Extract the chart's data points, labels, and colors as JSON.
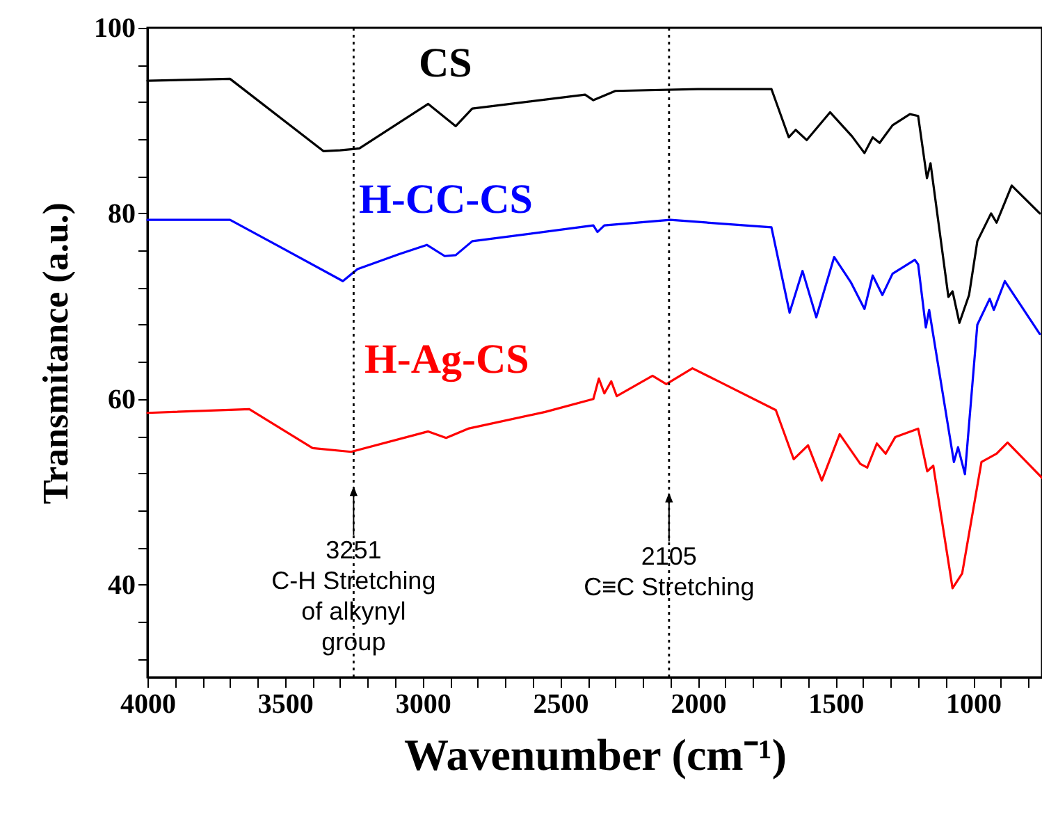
{
  "chart_data": {
    "type": "line",
    "xlabel": "Wavenumber (cm⁻¹)",
    "ylabel": "Transmitance (a.u.)",
    "xlim": [
      4000,
      750
    ],
    "ylim": [
      30,
      100
    ],
    "xticks": [
      4000,
      {
        "value": 3900,
        "label": null
      },
      {
        "value": 3800,
        "label": null
      },
      {
        "value": 3700,
        "label": null
      },
      {
        "value": 3600,
        "label": null
      },
      3500,
      {
        "value": 3400,
        "label": null
      },
      {
        "value": 3300,
        "label": null
      },
      {
        "value": 3200,
        "label": null
      },
      {
        "value": 3100,
        "label": null
      },
      3000,
      {
        "value": 2900,
        "label": null
      },
      {
        "value": 2800,
        "label": null
      },
      {
        "value": 2700,
        "label": null
      },
      {
        "value": 2600,
        "label": null
      },
      2500,
      {
        "value": 2400,
        "label": null
      },
      {
        "value": 2300,
        "label": null
      },
      {
        "value": 2200,
        "label": null
      },
      {
        "value": 2100,
        "label": null
      },
      2000,
      {
        "value": 1900,
        "label": null
      },
      {
        "value": 1800,
        "label": null
      },
      {
        "value": 1700,
        "label": null
      },
      {
        "value": 1600,
        "label": null
      },
      1500,
      {
        "value": 1400,
        "label": null
      },
      {
        "value": 1300,
        "label": null
      },
      {
        "value": 1200,
        "label": null
      },
      {
        "value": 1100,
        "label": null
      },
      1000,
      {
        "value": 900,
        "label": null
      },
      {
        "value": 800,
        "label": null
      }
    ],
    "yticks": [
      {
        "value": 32,
        "label": null
      },
      {
        "value": 36,
        "label": null
      },
      40,
      {
        "value": 44,
        "label": null
      },
      {
        "value": 48,
        "label": null
      },
      {
        "value": 52,
        "label": null
      },
      {
        "value": 56,
        "label": null
      },
      60,
      {
        "value": 64,
        "label": null
      },
      {
        "value": 68,
        "label": null
      },
      {
        "value": 72,
        "label": null
      },
      {
        "value": 76,
        "label": null
      },
      80,
      {
        "value": 84,
        "label": null
      },
      {
        "value": 88,
        "label": null
      },
      {
        "value": 92,
        "label": null
      },
      {
        "value": 96,
        "label": null
      },
      100
    ],
    "grid": false,
    "marker": "none",
    "line_style": "solid",
    "series": [
      {
        "name": "CS",
        "color": "#000000",
        "x": [
          4000,
          3700,
          3360,
          3300,
          3230,
          2980,
          2880,
          2820,
          2410,
          2380,
          2300,
          2000,
          1733,
          1670,
          1645,
          1605,
          1520,
          1440,
          1395,
          1365,
          1340,
          1293,
          1230,
          1200,
          1168,
          1155,
          1090,
          1075,
          1050,
          1015,
          985,
          935,
          915,
          860,
          758
        ],
        "values": [
          94.3,
          94.5,
          86.7,
          86.8,
          87,
          91.8,
          89.4,
          91.3,
          92.8,
          92.2,
          93.2,
          93.4,
          93.4,
          88.2,
          89,
          87.9,
          90.9,
          88.3,
          86.5,
          88.2,
          87.6,
          89.5,
          90.7,
          90.5,
          83.8,
          85.4,
          71,
          71.6,
          68.2,
          71.2,
          77,
          80,
          79,
          83,
          80
        ]
      },
      {
        "name": "H-CC-CS",
        "color": "#0000ff",
        "x": [
          4000,
          3700,
          3525,
          3290,
          3237,
          3086,
          2985,
          2920,
          2880,
          2820,
          2380,
          2365,
          2340,
          2100,
          1733,
          1667,
          1620,
          1570,
          1505,
          1445,
          1395,
          1365,
          1330,
          1293,
          1212,
          1200,
          1172,
          1160,
          1070,
          1055,
          1030,
          985,
          940,
          925,
          885,
          758
        ],
        "values": [
          79.3,
          79.3,
          76.5,
          72.7,
          74,
          75.6,
          76.6,
          75.4,
          75.5,
          77,
          78.7,
          78,
          78.7,
          79.3,
          78.5,
          69.3,
          73.8,
          68.8,
          75.3,
          72.6,
          69.7,
          73.3,
          71.2,
          73.5,
          75,
          74.5,
          67.7,
          69.6,
          53.2,
          54.8,
          51.9,
          68,
          70.8,
          69.6,
          72.7,
          67
        ]
      },
      {
        "name": "H-Ag-CS",
        "color": "#ff0000",
        "x": [
          4000,
          3630,
          3400,
          3260,
          2980,
          2915,
          2835,
          2555,
          2380,
          2360,
          2340,
          2315,
          2295,
          2165,
          2115,
          2020,
          1925,
          1717,
          1652,
          1600,
          1550,
          1485,
          1410,
          1385,
          1350,
          1318,
          1283,
          1200,
          1167,
          1145,
          1075,
          1040,
          970,
          915,
          875,
          750
        ],
        "values": [
          58.5,
          58.9,
          54.7,
          54.3,
          56.5,
          55.8,
          56.8,
          58.6,
          60,
          62.2,
          60.6,
          61.9,
          60.3,
          62.5,
          61.6,
          63.3,
          61.9,
          58.8,
          53.5,
          55,
          51.2,
          56.2,
          53,
          52.6,
          55.2,
          54.1,
          55.9,
          56.8,
          52.2,
          52.8,
          39.6,
          41.2,
          53.2,
          54.1,
          55.3,
          51.5
        ]
      }
    ],
    "ref_lines": [
      {
        "axis": "x",
        "value": 3251,
        "line_style": "dotted"
      },
      {
        "axis": "x",
        "value": 2105,
        "line_style": "dotted"
      }
    ],
    "annotations": [
      {
        "text": "3251\nC-H Stretching\nof alkynyl\ngroup",
        "x": 3251,
        "y": 50.6
      },
      {
        "text": "2105\nC≡C Stretching",
        "x": 2105,
        "y": 49.9
      }
    ]
  }
}
